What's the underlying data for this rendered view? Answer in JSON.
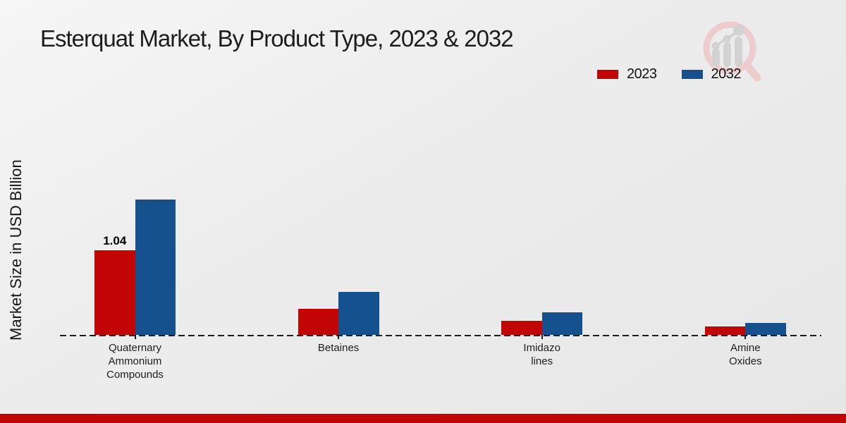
{
  "page": {
    "title": "Esterquat Market, By Product Type, 2023 & 2032"
  },
  "watermark": {
    "name": "market-research-growth-logo"
  },
  "brand": {
    "bottom_bar_color": "#c00505",
    "watermark_ring_color": "#eccccd",
    "watermark_gray_color": "#d2d2d2"
  },
  "chart_data": {
    "type": "bar",
    "title": "Esterquat Market, By Product Type, 2023 & 2032",
    "xlabel": "",
    "ylabel": "Market Size in USD Billion",
    "categories": [
      "Quaternary Ammonium Compounds",
      "Betaines",
      "Imidazolines",
      "Amine Oxides"
    ],
    "category_label_lines": [
      [
        "Quaternary",
        "Ammonium",
        "Compounds"
      ],
      [
        "Betaines"
      ],
      [
        "Imidazo",
        "lines"
      ],
      [
        "Amine",
        "Oxides"
      ]
    ],
    "series": [
      {
        "name": "2023",
        "color": "#c20505",
        "values": [
          1.04,
          0.32,
          0.17,
          0.1
        ]
      },
      {
        "name": "2032",
        "color": "#15508f",
        "values": [
          1.66,
          0.53,
          0.28,
          0.15
        ]
      }
    ],
    "bar_labels": [
      {
        "series_index": 0,
        "category_index": 0,
        "text": "1.04"
      }
    ],
    "ylim": [
      0,
      2.8
    ],
    "gridlines": false,
    "baseline_style": "dashed",
    "legend_position": "top-right"
  }
}
